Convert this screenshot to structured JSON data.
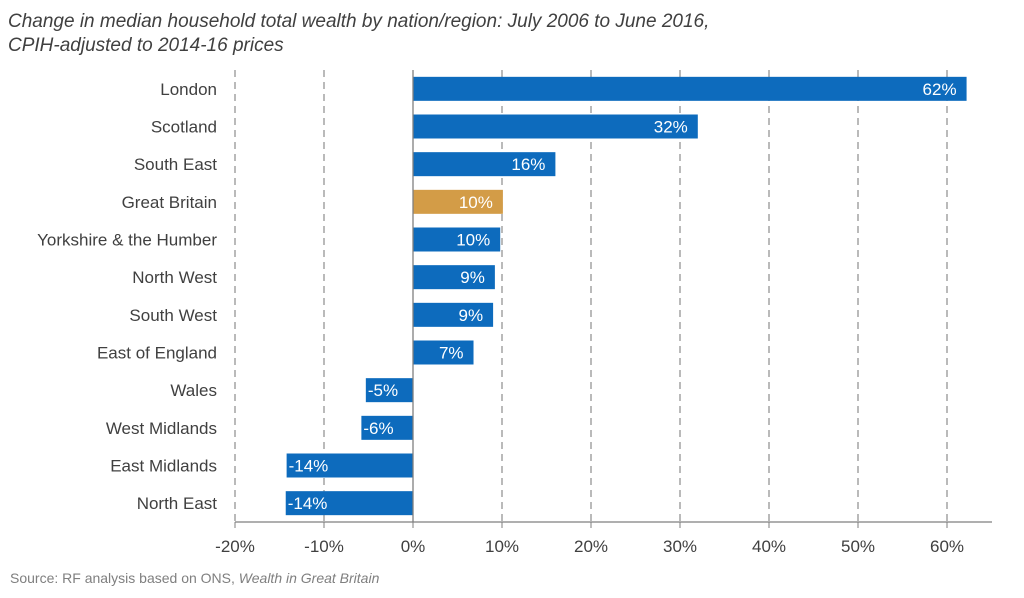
{
  "title": {
    "line1": "Change in median household total wealth by nation/region: July 2006 to June 2016,",
    "line2": "CPIH-adjusted to 2014-16 prices"
  },
  "source": {
    "prefix": "Source: RF analysis based on ONS, ",
    "italic": "Wealth in Great Britain"
  },
  "colors": {
    "bar": "#0d6bbd",
    "highlight": "#d39c47",
    "gridline": "#8c8c8c",
    "axis": "#7f7f7f",
    "label": "#404040"
  },
  "chart_data": {
    "type": "bar",
    "orientation": "horizontal",
    "title": "Change in median household total wealth by nation/region: July 2006 to June 2016, CPIH-adjusted to 2014-16 prices",
    "categories": [
      "London",
      "Scotland",
      "South East",
      "Great Britain",
      "Yorkshire & the Humber",
      "North West",
      "South West",
      "East of England",
      "Wales",
      "West Midlands",
      "East Midlands",
      "North East"
    ],
    "values": [
      62.2,
      32,
      16,
      10.1,
      9.8,
      9.2,
      9,
      6.8,
      -5.3,
      -5.8,
      -14.2,
      -14.3
    ],
    "data_labels": [
      "62%",
      "32%",
      "16%",
      "10%",
      "10%",
      "9%",
      "9%",
      "7%",
      "-5%",
      "-6%",
      "-14%",
      "-14%"
    ],
    "highlight_category": "Great Britain",
    "xlim": [
      -20,
      65
    ],
    "xticks": [
      -20,
      -10,
      0,
      10,
      20,
      30,
      40,
      50,
      60
    ],
    "xtick_labels": [
      "-20%",
      "-10%",
      "0%",
      "10%",
      "20%",
      "30%",
      "40%",
      "50%",
      "60%"
    ],
    "grid": "vertical dashed",
    "legend": "none"
  }
}
